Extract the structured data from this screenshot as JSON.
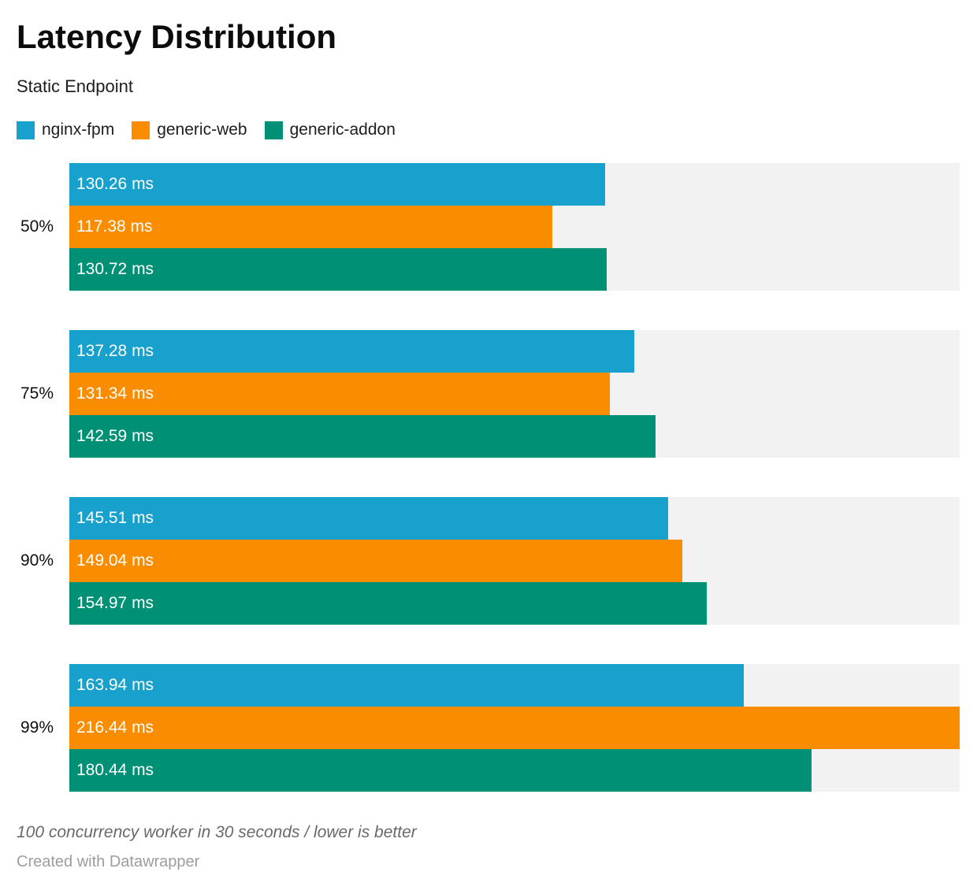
{
  "header": {
    "title": "Latency Distribution",
    "subtitle": "Static Endpoint"
  },
  "chart_data": {
    "type": "bar",
    "orientation": "horizontal",
    "title": "Latency Distribution",
    "subtitle": "Static Endpoint",
    "categories": [
      "50%",
      "75%",
      "90%",
      "99%"
    ],
    "series": [
      {
        "name": "nginx-fpm",
        "color": "#18a1cd",
        "values": [
          130.26,
          137.28,
          145.51,
          163.94
        ]
      },
      {
        "name": "generic-web",
        "color": "#fa8c00",
        "values": [
          117.38,
          131.34,
          149.04,
          216.44
        ]
      },
      {
        "name": "generic-addon",
        "color": "#009076",
        "values": [
          130.72,
          142.59,
          154.97,
          180.44
        ]
      }
    ],
    "value_unit": "ms",
    "value_decimals": 2,
    "xlim": [
      0,
      216.44
    ],
    "track_color": "#f2f2f2",
    "grid": false,
    "legend_position": "top"
  },
  "footer": {
    "note": "100 concurrency worker in 30 seconds / lower is better",
    "attribution": "Created with Datawrapper"
  }
}
